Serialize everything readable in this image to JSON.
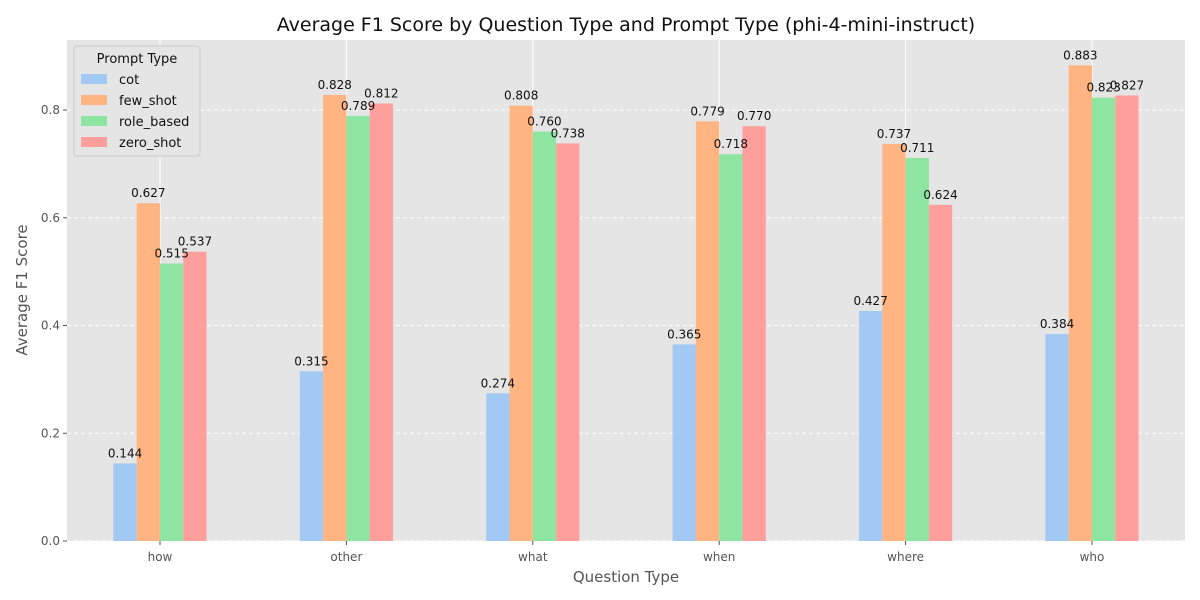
{
  "chart_data": {
    "type": "bar",
    "title": "Average F1 Score by Question Type and Prompt Type (phi-4-mini-instruct)",
    "xlabel": "Question Type",
    "ylabel": "Average F1 Score",
    "ylim": [
      0,
      0.93
    ],
    "yticks": [
      "0.0",
      "0.2",
      "0.4",
      "0.6",
      "0.8"
    ],
    "categories": [
      "how",
      "other",
      "what",
      "when",
      "where",
      "who"
    ],
    "legend": {
      "title": "Prompt Type",
      "placement": "top-left"
    },
    "grid": true,
    "series": [
      {
        "name": "cot",
        "color": "#a1c9f4",
        "values": [
          0.144,
          0.315,
          0.274,
          0.365,
          0.427,
          0.384
        ],
        "labels": [
          "0.144",
          "0.315",
          "0.274",
          "0.365",
          "0.427",
          "0.384"
        ]
      },
      {
        "name": "few_shot",
        "color": "#ffb482",
        "values": [
          0.627,
          0.828,
          0.808,
          0.779,
          0.737,
          0.883
        ],
        "labels": [
          "0.627",
          "0.828",
          "0.808",
          "0.779",
          "0.737",
          "0.883"
        ]
      },
      {
        "name": "role_based",
        "color": "#8de5a1",
        "values": [
          0.515,
          0.789,
          0.76,
          0.718,
          0.711,
          0.823
        ],
        "labels": [
          "0.515",
          "0.789",
          "0.760",
          "0.718",
          "0.711",
          "0.823"
        ]
      },
      {
        "name": "zero_shot",
        "color": "#ff9f9b",
        "values": [
          0.537,
          0.812,
          0.738,
          0.77,
          0.624,
          0.827
        ],
        "labels": [
          "0.537",
          "0.812",
          "0.738",
          "0.770",
          "0.624",
          "0.827"
        ]
      }
    ]
  }
}
